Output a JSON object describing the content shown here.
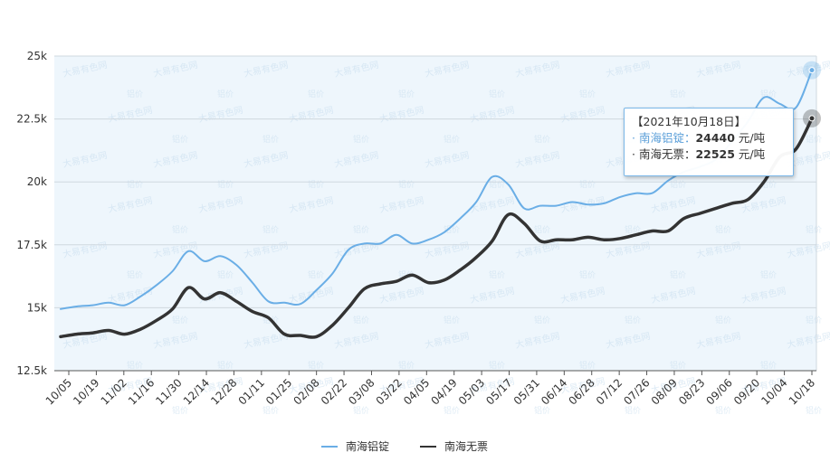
{
  "chart_data": {
    "type": "line",
    "y_ticks": [
      "12.5k",
      "15k",
      "17.5k",
      "20k",
      "22.5k",
      "25k"
    ],
    "y_tick_values": [
      12500,
      15000,
      17500,
      20000,
      22500,
      25000
    ],
    "ylim": [
      12500,
      25000
    ],
    "x_ticks": [
      "10/05",
      "10/19",
      "11/02",
      "11/16",
      "11/30",
      "12/14",
      "12/28",
      "01/11",
      "01/25",
      "02/08",
      "02/22",
      "03/08",
      "03/22",
      "04/05",
      "04/19",
      "05/03",
      "05/17",
      "05/31",
      "06/14",
      "06/28",
      "07/12",
      "07/26",
      "08/09",
      "08/23",
      "09/06",
      "09/20",
      "10/04",
      "10/18"
    ],
    "grid": true,
    "legend_position": "bottom-center",
    "series": [
      {
        "name": "南海铝锭",
        "color": "#6aaee6",
        "values": [
          14950,
          15050,
          15100,
          15200,
          15100,
          15450,
          15900,
          16450,
          17250,
          16850,
          17050,
          16700,
          16000,
          15250,
          15200,
          15150,
          15700,
          16350,
          17300,
          17550,
          17550,
          17900,
          17550,
          17700,
          18000,
          18550,
          19200,
          20200,
          19900,
          18950,
          19050,
          19050,
          19200,
          19100,
          19150,
          19400,
          19550,
          19550,
          20050,
          20400,
          20600,
          20900,
          21600,
          22400,
          23350,
          23100,
          22950,
          24440
        ]
      },
      {
        "name": "南海无票",
        "color": "#333333",
        "values": [
          13850,
          13950,
          14000,
          14100,
          13950,
          14150,
          14500,
          14950,
          15800,
          15350,
          15600,
          15250,
          14850,
          14600,
          13950,
          13900,
          13850,
          14300,
          15000,
          15750,
          15950,
          16050,
          16300,
          16000,
          16100,
          16500,
          17000,
          17650,
          18700,
          18350,
          17650,
          17700,
          17700,
          17800,
          17700,
          17750,
          17900,
          18050,
          18050,
          18550,
          18750,
          18950,
          19150,
          19300,
          20000,
          21000,
          21300,
          22525
        ]
      }
    ]
  },
  "tooltip": {
    "date": "【2021年10月18日】",
    "line1_label": "· 南海铝锭：",
    "line1_value": "24440",
    "line1_unit": " 元/吨",
    "line2_label": "· 南海无票：",
    "line2_value": "22525",
    "line2_unit": " 元/吨"
  },
  "watermarks": [
    "大易有色网",
    "铝价"
  ],
  "colors": {
    "plot_bg": "#eef6fc",
    "grid": "#cfd8df",
    "blue": "#6aaee6",
    "black": "#333333"
  }
}
